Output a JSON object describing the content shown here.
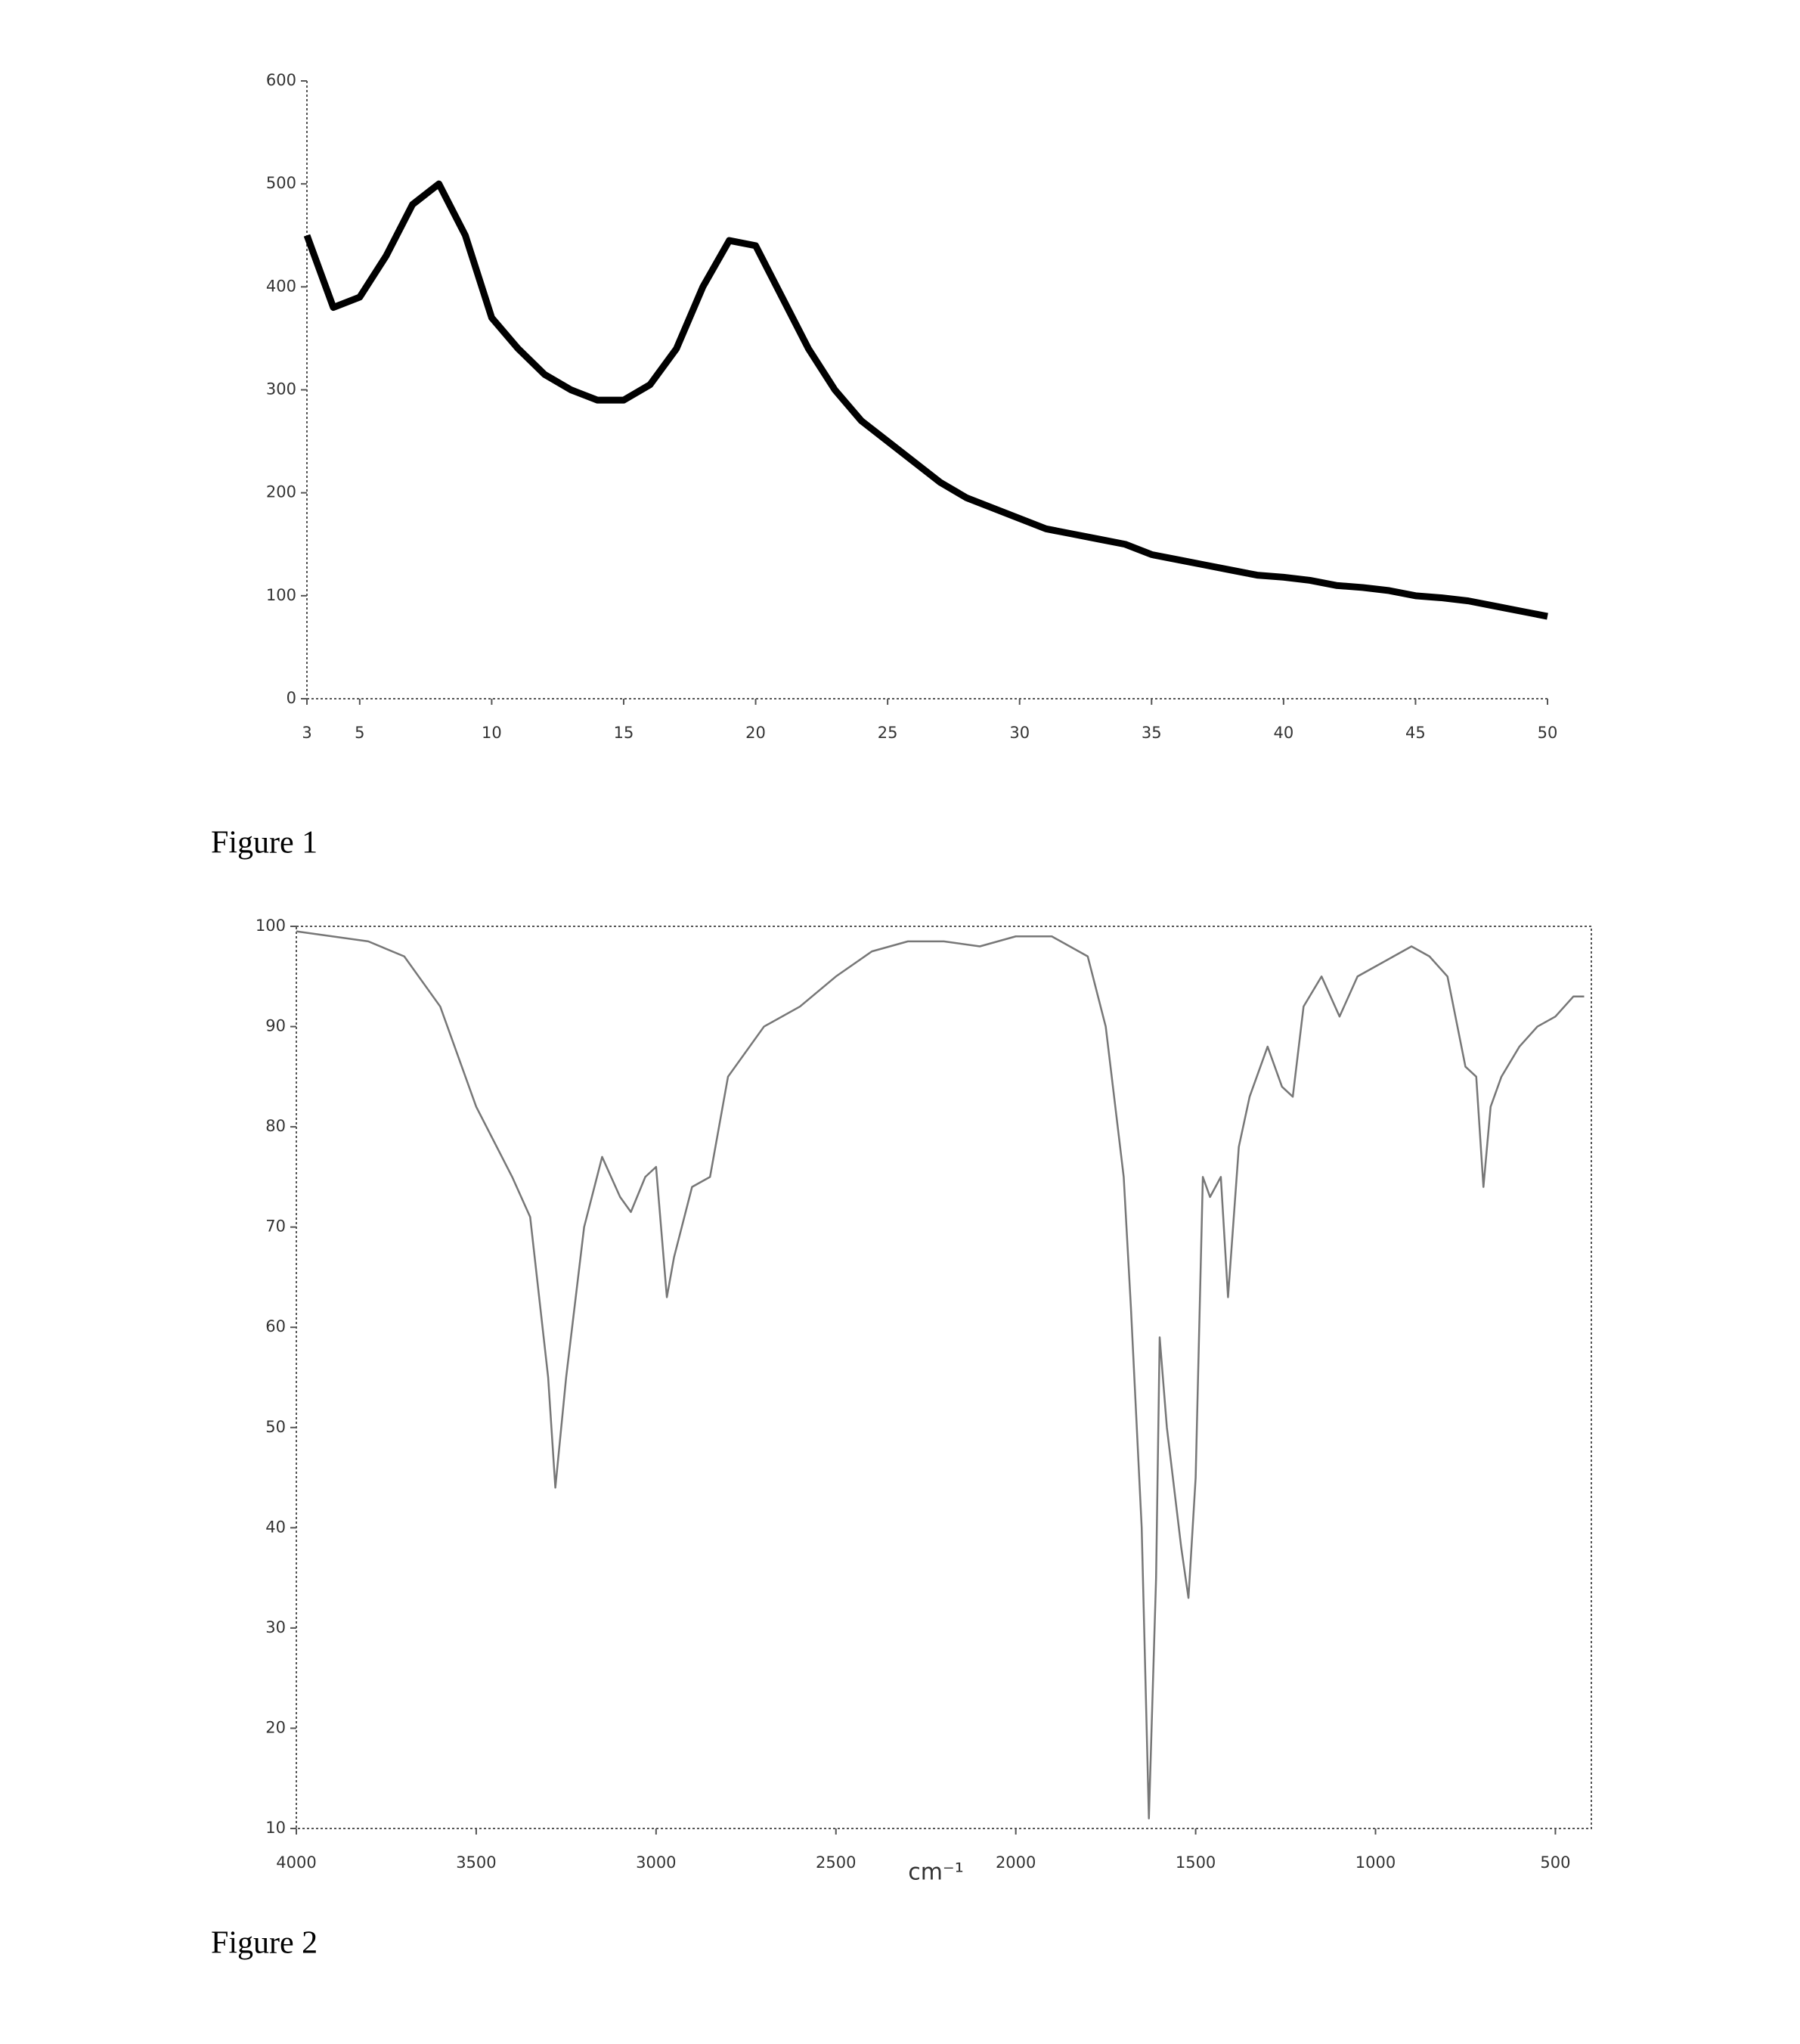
{
  "chart_data": [
    {
      "type": "line",
      "caption": "Figure 1",
      "x": [
        3,
        4,
        5,
        6,
        7,
        8,
        9,
        10,
        11,
        12,
        13,
        14,
        15,
        16,
        17,
        18,
        19,
        20,
        21,
        22,
        23,
        24,
        25,
        26,
        27,
        28,
        29,
        30,
        31,
        32,
        33,
        34,
        35,
        36,
        37,
        38,
        39,
        40,
        41,
        42,
        43,
        44,
        45,
        46,
        47,
        48,
        49,
        50
      ],
      "series": [
        {
          "color": "#000000",
          "values": [
            450,
            380,
            390,
            430,
            480,
            500,
            450,
            370,
            340,
            315,
            300,
            290,
            290,
            305,
            340,
            400,
            445,
            440,
            390,
            340,
            300,
            270,
            250,
            230,
            210,
            195,
            185,
            175,
            165,
            160,
            155,
            150,
            140,
            135,
            130,
            125,
            120,
            118,
            115,
            110,
            108,
            105,
            100,
            98,
            95,
            90,
            85,
            80
          ]
        }
      ],
      "xlim": [
        3,
        50
      ],
      "xticks": [
        3,
        5,
        10,
        15,
        20,
        25,
        30,
        35,
        40,
        45,
        50
      ],
      "ylim": [
        0,
        600
      ],
      "yticks": [
        0,
        100,
        200,
        300,
        400,
        500,
        600
      ],
      "grid": false
    },
    {
      "type": "line",
      "caption": "Figure 2",
      "x_label": "cm⁻¹",
      "x": [
        4000,
        3900,
        3800,
        3700,
        3600,
        3500,
        3400,
        3350,
        3300,
        3280,
        3250,
        3200,
        3150,
        3100,
        3070,
        3030,
        3000,
        2970,
        2950,
        2900,
        2850,
        2800,
        2700,
        2600,
        2500,
        2400,
        2300,
        2200,
        2100,
        2000,
        1900,
        1800,
        1750,
        1700,
        1680,
        1650,
        1630,
        1610,
        1600,
        1580,
        1540,
        1520,
        1500,
        1480,
        1460,
        1430,
        1410,
        1380,
        1350,
        1300,
        1260,
        1230,
        1200,
        1150,
        1100,
        1050,
        1000,
        950,
        900,
        850,
        800,
        750,
        720,
        700,
        680,
        650,
        600,
        550,
        500,
        450,
        420
      ],
      "series": [
        {
          "color": "#777777",
          "values": [
            99.5,
            99,
            98.5,
            97,
            92,
            82,
            75,
            71,
            55,
            44,
            55,
            70,
            77,
            73,
            71.5,
            75,
            76,
            63,
            67,
            74,
            75,
            85,
            90,
            92,
            95,
            97.5,
            98.5,
            98.5,
            98,
            99,
            99,
            97,
            90,
            75,
            62,
            40,
            11,
            35,
            59,
            50,
            38,
            33,
            45,
            75,
            73,
            75,
            63,
            78,
            83,
            88,
            84,
            83,
            92,
            95,
            91,
            95,
            96,
            97,
            98,
            97,
            95,
            86,
            85,
            74,
            82,
            85,
            88,
            90,
            91,
            93,
            93
          ]
        }
      ],
      "xlim": [
        4000,
        400
      ],
      "xticks": [
        4000,
        3500,
        3000,
        2500,
        2000,
        1500,
        1000,
        500
      ],
      "ylim": [
        10,
        100
      ],
      "yticks": [
        10,
        20,
        30,
        40,
        50,
        60,
        70,
        80,
        90,
        100
      ],
      "grid": false
    }
  ]
}
